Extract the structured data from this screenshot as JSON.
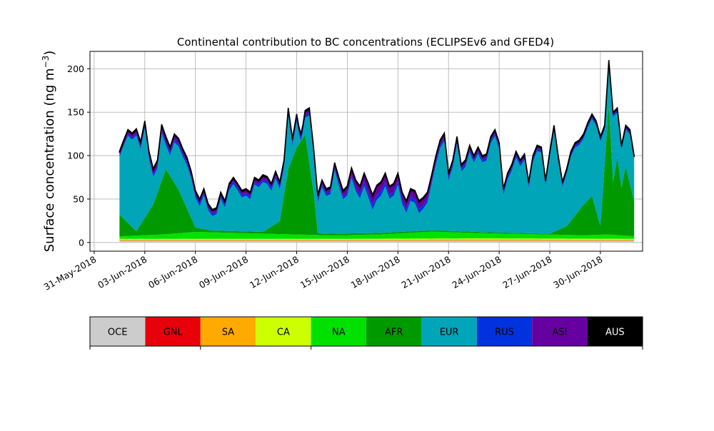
{
  "chart_data": {
    "type": "area",
    "stacked": true,
    "title": "Continental contribution to BC concentrations (ECLIPSEv6 and GFED4)",
    "ylabel": "Surface concentration (ng m",
    "ylabel_sup": "−3",
    "ylabel_close": ")",
    "ylim": [
      -10,
      220
    ],
    "yticks": [
      0,
      50,
      100,
      150,
      200
    ],
    "x_start": "2018-06-01",
    "x_end": "2018-07-01",
    "xlim": [
      "2018-05-30 18:00",
      "2018-07-02 12:00"
    ],
    "xticks": [
      "2018-05-31",
      "2018-06-03",
      "2018-06-06",
      "2018-06-09",
      "2018-06-12",
      "2018-06-15",
      "2018-06-18",
      "2018-06-21",
      "2018-06-24",
      "2018-06-27",
      "2018-06-30"
    ],
    "xtick_labels": [
      "31-May-2018",
      "03-Jun-2018",
      "06-Jun-2018",
      "09-Jun-2018",
      "12-Jun-2018",
      "15-Jun-2018",
      "18-Jun-2018",
      "21-Jun-2018",
      "24-Jun-2018",
      "27-Jun-2018",
      "30-Jun-2018"
    ],
    "grid": true,
    "total_anchors": [
      [
        "2018-06-01 12:00",
        105
      ],
      [
        "2018-06-01 18:00",
        118
      ],
      [
        "2018-06-02 00:00",
        130
      ],
      [
        "2018-06-02 06:00",
        126
      ],
      [
        "2018-06-02 12:00",
        131
      ],
      [
        "2018-06-02 18:00",
        116
      ],
      [
        "2018-06-03 00:00",
        140
      ],
      [
        "2018-06-03 06:00",
        105
      ],
      [
        "2018-06-03 12:00",
        85
      ],
      [
        "2018-06-03 18:00",
        95
      ],
      [
        "2018-06-04 00:00",
        136
      ],
      [
        "2018-06-04 06:00",
        122
      ],
      [
        "2018-06-04 12:00",
        110
      ],
      [
        "2018-06-04 18:00",
        125
      ],
      [
        "2018-06-05 00:00",
        120
      ],
      [
        "2018-06-05 06:00",
        108
      ],
      [
        "2018-06-05 12:00",
        98
      ],
      [
        "2018-06-05 18:00",
        82
      ],
      [
        "2018-06-06 00:00",
        60
      ],
      [
        "2018-06-06 06:00",
        50
      ],
      [
        "2018-06-06 12:00",
        62
      ],
      [
        "2018-06-06 18:00",
        45
      ],
      [
        "2018-06-07 00:00",
        38
      ],
      [
        "2018-06-07 06:00",
        40
      ],
      [
        "2018-06-07 12:00",
        58
      ],
      [
        "2018-06-07 18:00",
        48
      ],
      [
        "2018-06-08 00:00",
        68
      ],
      [
        "2018-06-08 06:00",
        75
      ],
      [
        "2018-06-08 12:00",
        68
      ],
      [
        "2018-06-08 18:00",
        60
      ],
      [
        "2018-06-09 00:00",
        62
      ],
      [
        "2018-06-09 06:00",
        58
      ],
      [
        "2018-06-09 12:00",
        75
      ],
      [
        "2018-06-09 18:00",
        72
      ],
      [
        "2018-06-10 00:00",
        78
      ],
      [
        "2018-06-10 06:00",
        76
      ],
      [
        "2018-06-10 12:00",
        68
      ],
      [
        "2018-06-10 18:00",
        82
      ],
      [
        "2018-06-11 00:00",
        70
      ],
      [
        "2018-06-11 06:00",
        95
      ],
      [
        "2018-06-11 12:00",
        155
      ],
      [
        "2018-06-11 18:00",
        120
      ],
      [
        "2018-06-12 00:00",
        148
      ],
      [
        "2018-06-12 06:00",
        120
      ],
      [
        "2018-06-12 12:00",
        152
      ],
      [
        "2018-06-12 18:00",
        155
      ],
      [
        "2018-06-13 00:00",
        110
      ],
      [
        "2018-06-13 06:00",
        55
      ],
      [
        "2018-06-13 12:00",
        72
      ],
      [
        "2018-06-13 18:00",
        62
      ],
      [
        "2018-06-14 00:00",
        64
      ],
      [
        "2018-06-14 06:00",
        92
      ],
      [
        "2018-06-14 12:00",
        75
      ],
      [
        "2018-06-14 18:00",
        60
      ],
      [
        "2018-06-15 00:00",
        65
      ],
      [
        "2018-06-15 06:00",
        86
      ],
      [
        "2018-06-15 12:00",
        72
      ],
      [
        "2018-06-15 18:00",
        65
      ],
      [
        "2018-06-16 00:00",
        80
      ],
      [
        "2018-06-16 06:00",
        68
      ],
      [
        "2018-06-16 12:00",
        55
      ],
      [
        "2018-06-16 18:00",
        66
      ],
      [
        "2018-06-17 00:00",
        70
      ],
      [
        "2018-06-17 06:00",
        80
      ],
      [
        "2018-06-17 12:00",
        65
      ],
      [
        "2018-06-17 18:00",
        68
      ],
      [
        "2018-06-18 00:00",
        80
      ],
      [
        "2018-06-18 06:00",
        58
      ],
      [
        "2018-06-18 12:00",
        48
      ],
      [
        "2018-06-18 18:00",
        62
      ],
      [
        "2018-06-19 00:00",
        60
      ],
      [
        "2018-06-19 06:00",
        48
      ],
      [
        "2018-06-19 12:00",
        52
      ],
      [
        "2018-06-19 18:00",
        58
      ],
      [
        "2018-06-20 00:00",
        78
      ],
      [
        "2018-06-20 06:00",
        100
      ],
      [
        "2018-06-20 12:00",
        118
      ],
      [
        "2018-06-20 18:00",
        126
      ],
      [
        "2018-06-21 00:00",
        80
      ],
      [
        "2018-06-21 06:00",
        95
      ],
      [
        "2018-06-21 12:00",
        122
      ],
      [
        "2018-06-21 18:00",
        90
      ],
      [
        "2018-06-22 00:00",
        95
      ],
      [
        "2018-06-22 06:00",
        112
      ],
      [
        "2018-06-22 12:00",
        100
      ],
      [
        "2018-06-22 18:00",
        110
      ],
      [
        "2018-06-23 00:00",
        100
      ],
      [
        "2018-06-23 06:00",
        102
      ],
      [
        "2018-06-23 12:00",
        122
      ],
      [
        "2018-06-23 18:00",
        130
      ],
      [
        "2018-06-24 00:00",
        115
      ],
      [
        "2018-06-24 06:00",
        62
      ],
      [
        "2018-06-24 12:00",
        80
      ],
      [
        "2018-06-24 18:00",
        90
      ],
      [
        "2018-06-25 00:00",
        105
      ],
      [
        "2018-06-25 06:00",
        95
      ],
      [
        "2018-06-25 12:00",
        102
      ],
      [
        "2018-06-25 18:00",
        70
      ],
      [
        "2018-06-26 00:00",
        100
      ],
      [
        "2018-06-26 06:00",
        112
      ],
      [
        "2018-06-26 12:00",
        110
      ],
      [
        "2018-06-26 18:00",
        72
      ],
      [
        "2018-06-27 00:00",
        105
      ],
      [
        "2018-06-27 06:00",
        135
      ],
      [
        "2018-06-27 12:00",
        100
      ],
      [
        "2018-06-27 18:00",
        70
      ],
      [
        "2018-06-28 00:00",
        85
      ],
      [
        "2018-06-28 06:00",
        105
      ],
      [
        "2018-06-28 12:00",
        115
      ],
      [
        "2018-06-28 18:00",
        118
      ],
      [
        "2018-06-29 00:00",
        125
      ],
      [
        "2018-06-29 06:00",
        138
      ],
      [
        "2018-06-29 12:00",
        148
      ],
      [
        "2018-06-29 18:00",
        140
      ],
      [
        "2018-06-30 00:00",
        122
      ],
      [
        "2018-06-30 06:00",
        135
      ],
      [
        "2018-06-30 12:00",
        210
      ],
      [
        "2018-06-30 18:00",
        150
      ],
      [
        "2018-07-01 00:00",
        155
      ],
      [
        "2018-07-01 06:00",
        112
      ],
      [
        "2018-07-01 12:00",
        135
      ],
      [
        "2018-07-01 18:00",
        130
      ],
      [
        "2018-07-02 00:00",
        100
      ]
    ],
    "series": [
      {
        "name": "OCE",
        "color": "#cccccc",
        "anchors": [
          [
            "2018-06-01 12:00",
            2
          ],
          [
            "2018-06-12 00:00",
            2
          ],
          [
            "2018-06-24 00:00",
            2
          ],
          [
            "2018-07-02 00:00",
            2
          ]
        ]
      },
      {
        "name": "GNL",
        "color": "#e8000b",
        "anchors": [
          [
            "2018-06-01 12:00",
            0.2
          ],
          [
            "2018-07-02 00:00",
            0.2
          ]
        ]
      },
      {
        "name": "SA",
        "color": "#ffaa00",
        "anchors": [
          [
            "2018-06-01 12:00",
            1
          ],
          [
            "2018-06-15 00:00",
            1
          ],
          [
            "2018-06-23 00:00",
            1.5
          ],
          [
            "2018-07-02 00:00",
            1
          ]
        ]
      },
      {
        "name": "CA",
        "color": "#ccff00",
        "anchors": [
          [
            "2018-06-01 12:00",
            1
          ],
          [
            "2018-07-02 00:00",
            1
          ]
        ]
      },
      {
        "name": "NA",
        "color": "#00e100",
        "anchors": [
          [
            "2018-06-01 12:00",
            3
          ],
          [
            "2018-06-04 00:00",
            5
          ],
          [
            "2018-06-06 00:00",
            8
          ],
          [
            "2018-06-10 00:00",
            6
          ],
          [
            "2018-06-14 00:00",
            4
          ],
          [
            "2018-06-17 00:00",
            5
          ],
          [
            "2018-06-20 00:00",
            8
          ],
          [
            "2018-06-23 00:00",
            6
          ],
          [
            "2018-06-26 00:00",
            5
          ],
          [
            "2018-06-29 00:00",
            4
          ],
          [
            "2018-06-30 12:00",
            5
          ],
          [
            "2018-07-02 00:00",
            3
          ]
        ]
      },
      {
        "name": "AFR",
        "color": "#009900",
        "anchors": [
          [
            "2018-06-01 12:00",
            25
          ],
          [
            "2018-06-02 12:00",
            5
          ],
          [
            "2018-06-03 00:00",
            20
          ],
          [
            "2018-06-03 12:00",
            35
          ],
          [
            "2018-06-04 06:00",
            75
          ],
          [
            "2018-06-05 00:00",
            50
          ],
          [
            "2018-06-06 00:00",
            5
          ],
          [
            "2018-06-07 00:00",
            2
          ],
          [
            "2018-06-10 00:00",
            2
          ],
          [
            "2018-06-11 00:00",
            15
          ],
          [
            "2018-06-11 12:00",
            75
          ],
          [
            "2018-06-12 00:00",
            100
          ],
          [
            "2018-06-12 12:00",
            115
          ],
          [
            "2018-06-13 00:00",
            50
          ],
          [
            "2018-06-13 06:00",
            2
          ],
          [
            "2018-06-27 00:00",
            1
          ],
          [
            "2018-06-28 00:00",
            10
          ],
          [
            "2018-06-29 00:00",
            35
          ],
          [
            "2018-06-29 12:00",
            45
          ],
          [
            "2018-06-30 00:00",
            10
          ],
          [
            "2018-06-30 12:00",
            150
          ],
          [
            "2018-06-30 18:00",
            60
          ],
          [
            "2018-07-01 00:00",
            90
          ],
          [
            "2018-07-01 06:00",
            55
          ],
          [
            "2018-07-01 12:00",
            80
          ],
          [
            "2018-07-02 00:00",
            40
          ]
        ]
      },
      {
        "name": "EUR",
        "color": "#00a5b8",
        "anchors": []
      },
      {
        "name": "RUS",
        "color": "#0033dd",
        "anchors": [
          [
            "2018-06-01 12:00",
            2
          ],
          [
            "2018-06-05 00:00",
            3
          ],
          [
            "2018-06-10 00:00",
            3
          ],
          [
            "2018-06-15 00:00",
            3
          ],
          [
            "2018-06-16 12:00",
            6
          ],
          [
            "2018-06-18 00:00",
            4
          ],
          [
            "2018-06-19 06:00",
            5
          ],
          [
            "2018-06-20 00:00",
            3
          ],
          [
            "2018-06-25 00:00",
            3
          ],
          [
            "2018-06-30 00:00",
            2
          ],
          [
            "2018-07-02 00:00",
            2
          ]
        ]
      },
      {
        "name": "ASI",
        "color": "#6600a0",
        "anchors": [
          [
            "2018-06-01 12:00",
            3
          ],
          [
            "2018-06-04 00:00",
            6
          ],
          [
            "2018-06-07 00:00",
            3
          ],
          [
            "2018-06-10 00:00",
            4
          ],
          [
            "2018-06-14 00:00",
            4
          ],
          [
            "2018-06-16 12:00",
            10
          ],
          [
            "2018-06-18 00:00",
            8
          ],
          [
            "2018-06-19 06:00",
            8
          ],
          [
            "2018-06-21 00:00",
            4
          ],
          [
            "2018-06-24 00:00",
            3
          ],
          [
            "2018-06-28 00:00",
            2
          ],
          [
            "2018-07-02 00:00",
            2
          ]
        ]
      },
      {
        "name": "AUS",
        "color": "#000000",
        "anchors": [
          [
            "2018-06-01 12:00",
            1.5
          ],
          [
            "2018-07-02 00:00",
            1.5
          ]
        ]
      }
    ]
  }
}
